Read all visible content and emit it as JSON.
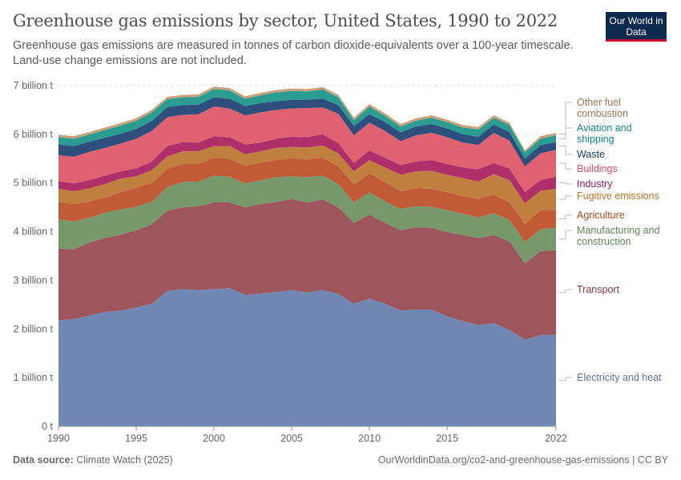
{
  "header": {
    "title": "Greenhouse gas emissions by sector, United States, 1990 to 2022",
    "subtitle": "Greenhouse gas emissions are measured in tonnes of carbon dioxide-equivalents over a 100-year timescale. Land-use change emissions are not included.",
    "logo": "Our World in Data"
  },
  "footer": {
    "source_label": "Data source:",
    "source": "Climate Watch (2025)",
    "url": "OurWorldinData.org/co2-and-greenhouse-gas-emissions | CC BY"
  },
  "chart_data": {
    "type": "area",
    "stacked": true,
    "title": "Greenhouse gas emissions by sector, United States, 1990 to 2022",
    "unit": "billion t",
    "ylim": [
      0,
      7
    ],
    "y_ticks": [
      {
        "v": 0,
        "label": "0 t"
      },
      {
        "v": 1,
        "label": "1 billion t"
      },
      {
        "v": 2,
        "label": "2 billion t"
      },
      {
        "v": 3,
        "label": "3 billion t"
      },
      {
        "v": 4,
        "label": "4 billion t"
      },
      {
        "v": 5,
        "label": "5 billion t"
      },
      {
        "v": 6,
        "label": "6 billion t"
      },
      {
        "v": 7,
        "label": "7 billion t"
      }
    ],
    "x_ticks": [
      "1990",
      "1995",
      "2000",
      "2005",
      "2010",
      "2015",
      "2022"
    ],
    "grid": "horizontal dashed",
    "legend": "right, inline labels",
    "x": [
      1990,
      1991,
      1992,
      1993,
      1994,
      1995,
      1996,
      1997,
      1998,
      1999,
      2000,
      2001,
      2002,
      2003,
      2004,
      2005,
      2006,
      2007,
      2008,
      2009,
      2010,
      2011,
      2012,
      2013,
      2014,
      2015,
      2016,
      2017,
      2018,
      2019,
      2020,
      2021,
      2022
    ],
    "series": [
      {
        "name": "Electricity and heat",
        "color": "#7088b3",
        "label_color": "#5a73a3",
        "values": [
          2.18,
          2.2,
          2.28,
          2.35,
          2.38,
          2.44,
          2.52,
          2.78,
          2.82,
          2.8,
          2.82,
          2.84,
          2.7,
          2.73,
          2.76,
          2.8,
          2.75,
          2.8,
          2.72,
          2.52,
          2.62,
          2.52,
          2.38,
          2.4,
          2.4,
          2.26,
          2.16,
          2.08,
          2.12,
          1.98,
          1.78,
          1.88,
          1.88
        ]
      },
      {
        "name": "Transport",
        "color": "#9c565c",
        "label_color": "#8c3a42",
        "values": [
          1.47,
          1.44,
          1.5,
          1.52,
          1.56,
          1.59,
          1.63,
          1.65,
          1.68,
          1.72,
          1.78,
          1.76,
          1.8,
          1.84,
          1.85,
          1.87,
          1.85,
          1.86,
          1.78,
          1.66,
          1.73,
          1.66,
          1.65,
          1.69,
          1.68,
          1.73,
          1.77,
          1.79,
          1.81,
          1.82,
          1.57,
          1.72,
          1.74
        ]
      },
      {
        "name": "Manufacturing and construction",
        "color": "#77986a",
        "label_color": "#5e8452",
        "values": [
          0.6,
          0.57,
          0.51,
          0.52,
          0.52,
          0.48,
          0.47,
          0.49,
          0.52,
          0.51,
          0.55,
          0.53,
          0.49,
          0.49,
          0.51,
          0.47,
          0.52,
          0.49,
          0.48,
          0.42,
          0.46,
          0.44,
          0.44,
          0.43,
          0.43,
          0.45,
          0.44,
          0.42,
          0.45,
          0.44,
          0.44,
          0.45,
          0.46
        ]
      },
      {
        "name": "Agriculture",
        "color": "#c15a37",
        "label_color": "#b4461a",
        "values": [
          0.36,
          0.36,
          0.33,
          0.31,
          0.35,
          0.39,
          0.38,
          0.37,
          0.37,
          0.36,
          0.37,
          0.37,
          0.36,
          0.36,
          0.35,
          0.37,
          0.36,
          0.37,
          0.36,
          0.37,
          0.38,
          0.4,
          0.36,
          0.37,
          0.37,
          0.37,
          0.36,
          0.38,
          0.38,
          0.36,
          0.37,
          0.39,
          0.37
        ]
      },
      {
        "name": "Fugitive emissions",
        "color": "#c07e3f",
        "label_color": "#b77327",
        "values": [
          0.27,
          0.26,
          0.27,
          0.28,
          0.28,
          0.24,
          0.26,
          0.26,
          0.26,
          0.26,
          0.24,
          0.26,
          0.24,
          0.23,
          0.25,
          0.23,
          0.25,
          0.25,
          0.27,
          0.27,
          0.28,
          0.3,
          0.34,
          0.35,
          0.37,
          0.36,
          0.37,
          0.36,
          0.42,
          0.46,
          0.42,
          0.4,
          0.43
        ]
      },
      {
        "name": "Industry",
        "color": "#ae2f6a",
        "label_color": "#a1195c",
        "values": [
          0.16,
          0.16,
          0.17,
          0.17,
          0.15,
          0.16,
          0.18,
          0.21,
          0.19,
          0.18,
          0.2,
          0.18,
          0.2,
          0.18,
          0.19,
          0.21,
          0.21,
          0.23,
          0.21,
          0.17,
          0.2,
          0.2,
          0.2,
          0.2,
          0.22,
          0.22,
          0.22,
          0.25,
          0.23,
          0.24,
          0.23,
          0.22,
          0.25
        ]
      },
      {
        "name": "Buildings",
        "color": "#e06271",
        "label_color": "#e0485f",
        "values": [
          0.53,
          0.55,
          0.58,
          0.57,
          0.57,
          0.61,
          0.63,
          0.59,
          0.56,
          0.58,
          0.61,
          0.59,
          0.6,
          0.62,
          0.59,
          0.58,
          0.6,
          0.55,
          0.6,
          0.57,
          0.57,
          0.55,
          0.49,
          0.54,
          0.56,
          0.55,
          0.51,
          0.5,
          0.62,
          0.57,
          0.53,
          0.55,
          0.55
        ]
      },
      {
        "name": "Waste",
        "color": "#2e4e7e",
        "label_color": "#18386b",
        "values": [
          0.22,
          0.22,
          0.21,
          0.21,
          0.2,
          0.2,
          0.2,
          0.21,
          0.2,
          0.2,
          0.19,
          0.2,
          0.19,
          0.19,
          0.18,
          0.18,
          0.17,
          0.18,
          0.18,
          0.19,
          0.17,
          0.18,
          0.18,
          0.18,
          0.18,
          0.18,
          0.17,
          0.17,
          0.17,
          0.18,
          0.16,
          0.17,
          0.16
        ]
      },
      {
        "name": "Aviation and shipping",
        "color": "#2a9c92",
        "label_color": "#13867e",
        "values": [
          0.15,
          0.15,
          0.15,
          0.16,
          0.17,
          0.17,
          0.18,
          0.16,
          0.16,
          0.16,
          0.17,
          0.17,
          0.15,
          0.16,
          0.18,
          0.18,
          0.17,
          0.19,
          0.16,
          0.12,
          0.16,
          0.13,
          0.12,
          0.12,
          0.13,
          0.13,
          0.14,
          0.15,
          0.14,
          0.14,
          0.13,
          0.13,
          0.14
        ]
      },
      {
        "name": "Other fuel combustion",
        "color": "#c8a07a",
        "label_color": "#a2734f",
        "values": [
          0.05,
          0.05,
          0.05,
          0.05,
          0.05,
          0.05,
          0.05,
          0.05,
          0.05,
          0.05,
          0.05,
          0.05,
          0.05,
          0.05,
          0.05,
          0.05,
          0.05,
          0.05,
          0.05,
          0.05,
          0.05,
          0.05,
          0.05,
          0.05,
          0.05,
          0.05,
          0.05,
          0.05,
          0.05,
          0.05,
          0.04,
          0.05,
          0.05
        ]
      }
    ]
  }
}
